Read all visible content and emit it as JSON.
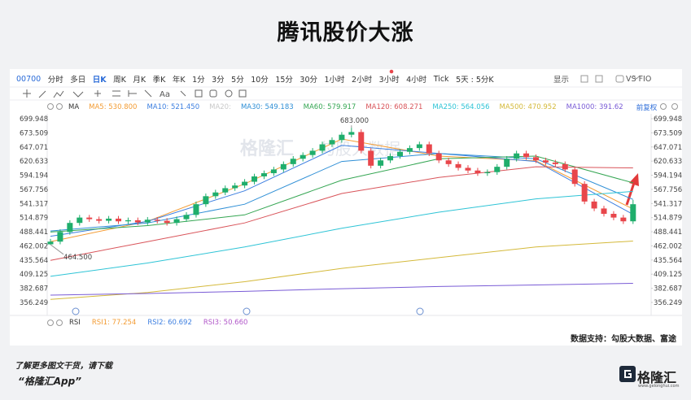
{
  "header": {
    "title": "腾讯股价大涨"
  },
  "toolbar": {
    "symbol": "00700",
    "periods": [
      "分时",
      "多日",
      "日K",
      "周K",
      "月K",
      "季K",
      "年K",
      "1分",
      "3分",
      "5分",
      "10分",
      "15分",
      "30分",
      "1小时",
      "2小时",
      "3小时",
      "4小时",
      "Tick",
      "5天 : 5分K"
    ],
    "display": "显示",
    "compare": "VS FIO",
    "text_tool": "Aa"
  },
  "chart_data": {
    "type": "candlestick",
    "indicator": "MA",
    "adjust": "前复权",
    "up_color": "#1fae6c",
    "down_color": "#e8464b",
    "open": [
      465,
      470,
      488,
      505,
      515,
      512,
      509,
      513,
      508,
      510,
      506,
      511,
      509,
      505,
      512,
      520,
      540,
      555,
      562,
      570,
      575,
      582,
      592,
      598,
      605,
      615,
      625,
      632,
      640,
      652,
      660,
      670,
      675,
      640,
      612,
      622,
      630,
      638,
      645,
      652,
      635,
      622,
      615,
      608,
      603,
      598,
      600,
      610,
      625,
      635,
      628,
      622,
      618,
      615,
      605,
      578,
      545,
      532,
      522,
      515,
      508
    ],
    "high": [
      475,
      493,
      510,
      520,
      520,
      517,
      518,
      518,
      515,
      515,
      516,
      516,
      514,
      517,
      525,
      545,
      560,
      567,
      575,
      580,
      587,
      597,
      603,
      610,
      620,
      630,
      637,
      645,
      657,
      665,
      675,
      683,
      680,
      645,
      627,
      635,
      643,
      650,
      657,
      657,
      640,
      627,
      620,
      613,
      608,
      605,
      615,
      630,
      640,
      640,
      633,
      627,
      623,
      620,
      610,
      583,
      550,
      537,
      527,
      520,
      548
    ],
    "low": [
      464.5,
      465,
      483,
      500,
      507,
      504,
      504,
      503,
      503,
      501,
      501,
      504,
      500,
      500,
      507,
      515,
      535,
      550,
      557,
      565,
      570,
      577,
      587,
      593,
      600,
      610,
      620,
      627,
      635,
      647,
      655,
      665,
      635,
      607,
      607,
      617,
      625,
      633,
      640,
      630,
      617,
      610,
      603,
      598,
      593,
      593,
      595,
      605,
      620,
      623,
      617,
      613,
      610,
      600,
      573,
      540,
      527,
      517,
      510,
      503,
      503
    ],
    "close": [
      470,
      488,
      505,
      515,
      512,
      509,
      513,
      508,
      510,
      506,
      511,
      509,
      505,
      512,
      520,
      540,
      555,
      562,
      570,
      575,
      582,
      592,
      598,
      605,
      615,
      625,
      632,
      640,
      652,
      660,
      670,
      675,
      640,
      612,
      622,
      630,
      638,
      645,
      652,
      635,
      622,
      615,
      608,
      603,
      598,
      600,
      610,
      625,
      635,
      628,
      622,
      618,
      615,
      605,
      578,
      545,
      532,
      522,
      515,
      508,
      540
    ],
    "ylim": [
      356.249,
      699.948
    ],
    "yticks": [
      699.948,
      673.509,
      647.071,
      620.633,
      594.194,
      567.756,
      541.317,
      514.879,
      488.441,
      462.002,
      435.564,
      409.125,
      382.687,
      356.249
    ],
    "annotations": [
      {
        "index": 31,
        "value": 683,
        "label": "683.000"
      },
      {
        "index": 0,
        "value": 464.5,
        "label": "464.500"
      }
    ],
    "ma_index": [
      0,
      10,
      20,
      30,
      40,
      50,
      60
    ],
    "series": [
      {
        "legend": "MA5: 530.800",
        "color": "#f39c34",
        "values": [
          470,
          508,
          578,
          662,
          630,
          621,
          531
        ]
      },
      {
        "legend": "MA10: 521.450",
        "color": "#3d7fe0",
        "values": [
          480,
          508,
          565,
          650,
          635,
          620,
          521
        ]
      },
      {
        "legend": "MA20:",
        "color": "#c9c9c9",
        "values": []
      },
      {
        "legend": "MA30: 549.183",
        "color": "#2f8fd6",
        "values": [
          490,
          505,
          540,
          620,
          635,
          625,
          549
        ]
      },
      {
        "legend": "MA60: 579.917",
        "color": "#35a653",
        "values": [
          488,
          500,
          520,
          585,
          625,
          630,
          580
        ]
      },
      {
        "legend": "MA120: 608.271",
        "color": "#d9545a",
        "values": [
          435,
          470,
          505,
          560,
          590,
          610,
          608
        ]
      },
      {
        "legend": "MA250: 564.056",
        "color": "#2ec4d6",
        "values": [
          405,
          430,
          460,
          495,
          525,
          550,
          564
        ]
      },
      {
        "legend": "MA500: 470.952",
        "color": "#d4b93a",
        "values": [
          362,
          375,
          395,
          420,
          440,
          460,
          471
        ]
      },
      {
        "legend": "MA1000: 391.62",
        "color": "#7a5cd6",
        "values": [
          370,
          373,
          377,
          382,
          386,
          389,
          392
        ]
      }
    ],
    "rsi": {
      "name": "RSI",
      "series": [
        {
          "legend": "RSI1: 77.254",
          "color": "#f39c34"
        },
        {
          "legend": "RSI2: 60.692",
          "color": "#3d7fe0"
        },
        {
          "legend": "RSI3: 50.660",
          "color": "#b158c9"
        }
      ]
    }
  },
  "watermark": {
    "brand": "格隆汇",
    "partner": "勾股大数据"
  },
  "source": "数据支持：勾股大数据、富途",
  "footer": {
    "line1": "了解更多图文干货，请下载",
    "line2": "“格隆汇App”",
    "logo": "格隆汇",
    "url": "www.gelonghui.com"
  }
}
